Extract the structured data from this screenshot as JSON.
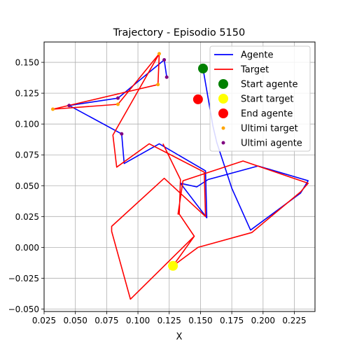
{
  "chart_data": {
    "type": "line",
    "title": "Trajectory - Episodio 5150",
    "xlabel": "X",
    "ylabel": "",
    "xlim": [
      0.025,
      0.2415
    ],
    "ylim": [
      -0.052,
      0.1665
    ],
    "xticks": [
      0.025,
      0.05,
      0.075,
      0.1,
      0.125,
      0.15,
      0.175,
      0.2,
      0.225
    ],
    "xtick_labels": [
      "0.025",
      "0.050",
      "0.075",
      "0.100",
      "0.125",
      "0.150",
      "0.175",
      "0.200",
      "0.225"
    ],
    "yticks": [
      -0.05,
      -0.025,
      0.0,
      0.025,
      0.05,
      0.075,
      0.1,
      0.125,
      0.15
    ],
    "ytick_labels": [
      "−0.050",
      "−0.025",
      "0.000",
      "0.025",
      "0.050",
      "0.075",
      "0.100",
      "0.125",
      "0.150"
    ],
    "grid": true,
    "legend_position": "top-right",
    "series": [
      {
        "name": "Agente",
        "kind": "line",
        "color": "#0000ff",
        "x": [
          0.123,
          0.121,
          0.084,
          0.045,
          0.087,
          0.089,
          0.117,
          0.154,
          0.155,
          0.134,
          0.147,
          0.156,
          0.196,
          0.236,
          0.23,
          0.19,
          0.175,
          0.163,
          0.16,
          0.152
        ],
        "y": [
          0.138,
          0.152,
          0.121,
          0.115,
          0.092,
          0.068,
          0.084,
          0.062,
          0.024,
          0.052,
          0.049,
          0.055,
          0.066,
          0.054,
          0.044,
          0.014,
          0.048,
          0.085,
          0.098,
          0.145
        ]
      },
      {
        "name": "Target",
        "kind": "line",
        "color": "#ff0000",
        "x": [
          0.117,
          0.116,
          0.032,
          0.084,
          0.117,
          0.08,
          0.083,
          0.109,
          0.153,
          0.154,
          0.121,
          0.079,
          0.079,
          0.094,
          0.145,
          0.133,
          0.132,
          0.136,
          0.184,
          0.236,
          0.23,
          0.191,
          0.148,
          0.128,
          0.145,
          0.133,
          0.134,
          0.12
        ],
        "y": [
          0.157,
          0.132,
          0.112,
          0.116,
          0.157,
          0.091,
          0.065,
          0.084,
          0.061,
          0.025,
          0.056,
          0.017,
          0.013,
          -0.042,
          0.009,
          0.027,
          0.027,
          0.054,
          0.07,
          0.052,
          0.045,
          0.012,
          0.0,
          -0.015,
          0.009,
          0.027,
          0.055,
          0.084
        ]
      },
      {
        "name": "Start agente",
        "kind": "point",
        "color": "#008000",
        "x": [
          0.152
        ],
        "y": [
          0.145
        ]
      },
      {
        "name": "Start target",
        "kind": "point",
        "color": "#ffff00",
        "x": [
          0.128
        ],
        "y": [
          -0.015
        ]
      },
      {
        "name": "End agente",
        "kind": "point",
        "color": "#ff0000",
        "x": [
          0.148
        ],
        "y": [
          0.12
        ]
      },
      {
        "name": "Ultimi target",
        "kind": "small-point",
        "color": "#ffa500",
        "x": [
          0.117,
          0.116,
          0.032,
          0.084
        ],
        "y": [
          0.157,
          0.132,
          0.112,
          0.116
        ]
      },
      {
        "name": "Ultimi agente",
        "kind": "small-point",
        "color": "#800080",
        "x": [
          0.123,
          0.121,
          0.084,
          0.045,
          0.087
        ],
        "y": [
          0.138,
          0.152,
          0.121,
          0.115,
          0.092
        ]
      }
    ]
  }
}
